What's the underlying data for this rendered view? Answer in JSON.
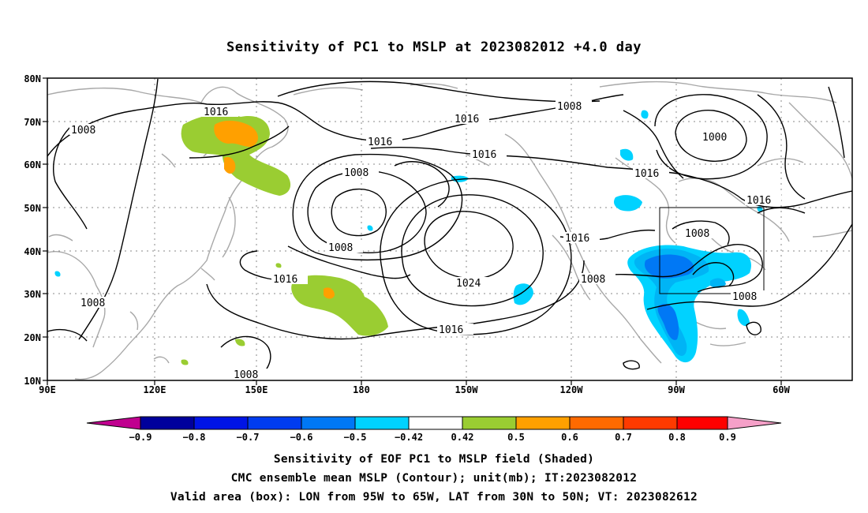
{
  "title": "Sensitivity of PC1 to MSLP at 2023082012 +4.0 day",
  "lat_ticks": [
    "80N",
    "70N",
    "60N",
    "50N",
    "40N",
    "30N",
    "20N",
    "10N"
  ],
  "lon_ticks": [
    "90E",
    "120E",
    "150E",
    "180",
    "150W",
    "120W",
    "90W",
    "60W"
  ],
  "contour_labels": [
    "1016",
    "1008",
    "1016",
    "1016",
    "1008",
    "1016",
    "1000",
    "1008",
    "1016",
    "1016",
    "1008",
    "1016",
    "1008",
    "1024",
    "1016",
    "1008",
    "1016",
    "1008",
    "1008",
    "1008"
  ],
  "colorbar": {
    "labels": [
      "−0.9",
      "−0.8",
      "−0.7",
      "−0.6",
      "−0.5",
      "−0.42",
      "0.42",
      "0.5",
      "0.6",
      "0.7",
      "0.8",
      "0.9"
    ],
    "colors": [
      "#c0008f",
      "#00009c",
      "#0014e6",
      "#003cf0",
      "#0078f5",
      "#00b4f5",
      "#00d2ff",
      "#ffffff",
      "#9acd32",
      "#ffa000",
      "#ff6a00",
      "#ff3a00",
      "#ff0000",
      "#f5a0c8"
    ]
  },
  "valid_box": {
    "lon_from": "95W",
    "lon_to": "65W",
    "lat_from": "30N",
    "lat_to": "50N"
  },
  "captions": [
    "Sensitivity of EOF PC1 to MSLP field (Shaded)",
    "CMC ensemble mean MSLP (Contour); unit(mb); IT:2023082012",
    "Valid area (box): LON from 95W to 65W, LAT from 30N to 50N; VT: 2023082612"
  ]
}
